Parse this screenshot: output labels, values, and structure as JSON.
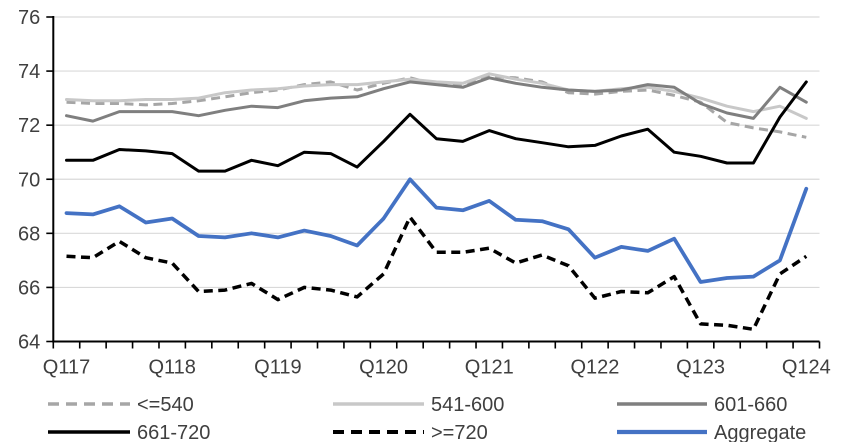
{
  "chart_data": {
    "type": "line",
    "title": "",
    "xlabel": "",
    "ylabel": "",
    "ylim": [
      64,
      76
    ],
    "ytick_step": 2,
    "ytick_labels": [
      "64",
      "66",
      "68",
      "70",
      "72",
      "74",
      "76"
    ],
    "grid": true,
    "legend_position": "bottom",
    "categories": [
      "Q117",
      "Q217",
      "Q317",
      "Q417",
      "Q118",
      "Q218",
      "Q318",
      "Q418",
      "Q119",
      "Q219",
      "Q319",
      "Q419",
      "Q120",
      "Q220",
      "Q320",
      "Q420",
      "Q121",
      "Q221",
      "Q321",
      "Q421",
      "Q122",
      "Q222",
      "Q322",
      "Q422",
      "Q123",
      "Q223",
      "Q323",
      "Q423",
      "Q124"
    ],
    "x_tick_labels_shown": [
      "Q117",
      "Q118",
      "Q119",
      "Q120",
      "Q121",
      "Q122",
      "Q123",
      "Q124"
    ],
    "x_tick_label_indices": [
      0,
      4,
      8,
      12,
      16,
      20,
      24,
      28
    ],
    "colors": {
      "le540": "#a6a6a6",
      "g541_600": "#c8c8c8",
      "g601_660": "#7f7f7f",
      "g661_720": "#000000",
      "ge720": "#000000",
      "aggregate": "#4472c4",
      "gridline": "#d9d9d9",
      "axis": "#000000",
      "label_text": "#3f3f3f"
    },
    "series": [
      {
        "name": "<=540",
        "style": "dashed",
        "color": "#a6a6a6",
        "width": 3,
        "values": [
          72.85,
          72.8,
          72.8,
          72.75,
          72.8,
          72.9,
          73.05,
          73.2,
          73.3,
          73.5,
          73.6,
          73.3,
          73.55,
          73.75,
          73.5,
          73.5,
          73.8,
          73.75,
          73.6,
          73.2,
          73.15,
          73.25,
          73.3,
          73.1,
          72.85,
          72.1,
          71.9,
          71.75,
          71.55
        ]
      },
      {
        "name": "541-600",
        "style": "solid",
        "color": "#c8c8c8",
        "width": 3,
        "values": [
          72.95,
          72.9,
          72.9,
          72.95,
          72.95,
          73.0,
          73.2,
          73.3,
          73.35,
          73.45,
          73.5,
          73.5,
          73.6,
          73.7,
          73.6,
          73.55,
          73.9,
          73.7,
          73.55,
          73.3,
          73.25,
          73.35,
          73.4,
          73.25,
          73.0,
          72.7,
          72.5,
          72.7,
          72.25
        ]
      },
      {
        "name": "601-660",
        "style": "solid",
        "color": "#7f7f7f",
        "width": 3,
        "values": [
          72.35,
          72.15,
          72.5,
          72.5,
          72.5,
          72.35,
          72.55,
          72.7,
          72.65,
          72.9,
          73.0,
          73.05,
          73.35,
          73.6,
          73.5,
          73.4,
          73.75,
          73.55,
          73.4,
          73.3,
          73.25,
          73.3,
          73.5,
          73.4,
          72.8,
          72.45,
          72.25,
          73.4,
          72.85
        ]
      },
      {
        "name": "661-720",
        "style": "solid",
        "color": "#000000",
        "width": 3,
        "values": [
          70.7,
          70.7,
          71.1,
          71.05,
          70.95,
          70.3,
          70.3,
          70.7,
          70.5,
          71.0,
          70.95,
          70.45,
          71.4,
          72.4,
          71.5,
          71.4,
          71.8,
          71.5,
          71.35,
          71.2,
          71.25,
          71.6,
          71.85,
          71.0,
          70.85,
          70.6,
          70.6,
          72.3,
          73.6
        ]
      },
      {
        "name": ">=720",
        "style": "dashed",
        "color": "#000000",
        "width": 3.5,
        "values": [
          67.15,
          67.1,
          67.7,
          67.1,
          66.9,
          65.85,
          65.9,
          66.15,
          65.55,
          66.0,
          65.9,
          65.65,
          66.5,
          68.6,
          67.3,
          67.3,
          67.45,
          66.9,
          67.2,
          66.8,
          65.6,
          65.85,
          65.8,
          66.4,
          64.65,
          64.6,
          64.45,
          66.5,
          67.15
        ]
      },
      {
        "name": "Aggregate",
        "style": "solid",
        "color": "#4472c4",
        "width": 3.75,
        "values": [
          68.75,
          68.7,
          69.0,
          68.4,
          68.55,
          67.9,
          67.85,
          68.0,
          67.85,
          68.1,
          67.9,
          67.55,
          68.55,
          70.0,
          68.95,
          68.85,
          69.2,
          68.5,
          68.45,
          68.15,
          67.1,
          67.5,
          67.35,
          67.8,
          66.2,
          66.35,
          66.4,
          67.0,
          69.65
        ]
      }
    ],
    "legend": {
      "rows": [
        [
          "<=540",
          "541-600",
          "601-660"
        ],
        [
          "661-720",
          ">=720",
          "Aggregate"
        ]
      ]
    }
  }
}
